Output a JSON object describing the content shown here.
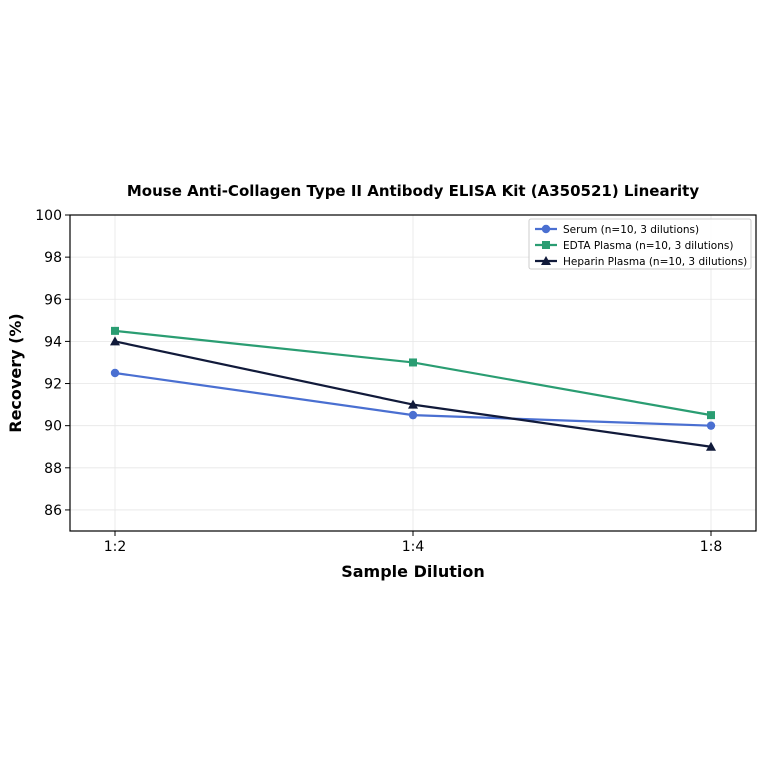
{
  "chart_data": {
    "type": "line",
    "title": "Mouse Anti-Collagen Type II Antibody ELISA Kit (A350521) Linearity",
    "xlabel": "Sample Dilution",
    "ylabel": "Recovery (%)",
    "categories": [
      "1:2",
      "1:4",
      "1:8"
    ],
    "ylim": [
      85,
      100
    ],
    "yticks": [
      86,
      88,
      90,
      92,
      94,
      96,
      98,
      100
    ],
    "grid": true,
    "legend_position": "top-right",
    "series": [
      {
        "name": "Serum (n=10, 3 dilutions)",
        "values": [
          92.5,
          90.5,
          90.0
        ],
        "color": "#4a6fd1",
        "marker": "circle"
      },
      {
        "name": "EDTA Plasma (n=10, 3 dilutions)",
        "values": [
          94.5,
          93.0,
          90.5
        ],
        "color": "#2a9d72",
        "marker": "square"
      },
      {
        "name": "Heparin Plasma (n=10, 3 dilutions)",
        "values": [
          94.0,
          91.0,
          89.0
        ],
        "color": "#111a3a",
        "marker": "triangle"
      }
    ]
  }
}
